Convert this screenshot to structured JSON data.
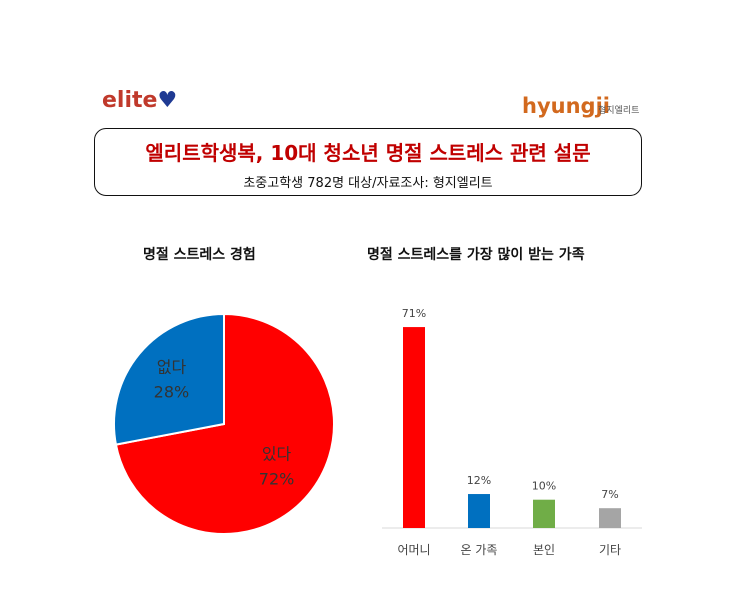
{
  "logos": {
    "elite": "elite",
    "hyungji": "hyungji",
    "hyungji_sub": "형지엘리트"
  },
  "header": {
    "title": "엘리트학생복, 10대 청소년 명절 스트레스 관련 설문",
    "subtitle": "초중고학생 782명 대상/자료조사: 형지엘리트"
  },
  "colors": {
    "red": "#ff0000",
    "blue": "#0070c0",
    "green": "#70ad47",
    "gray": "#a5a5a5"
  },
  "chart_data": [
    {
      "type": "pie",
      "title": "명절 스트레스 경험",
      "slices": [
        {
          "label": "있다",
          "value": 72,
          "display": "72%",
          "color": "#ff0000"
        },
        {
          "label": "없다",
          "value": 28,
          "display": "28%",
          "color": "#0070c0"
        }
      ]
    },
    {
      "type": "bar",
      "title": "명절 스트레스를 가장 많이 받는 가족",
      "categories": [
        "어머니",
        "온 가족",
        "본인",
        "기타"
      ],
      "values": [
        71,
        12,
        10,
        7
      ],
      "labels": [
        "71%",
        "12%",
        "10%",
        "7%"
      ],
      "colors": [
        "#ff0000",
        "#0070c0",
        "#70ad47",
        "#a5a5a5"
      ],
      "grid": false
    }
  ]
}
